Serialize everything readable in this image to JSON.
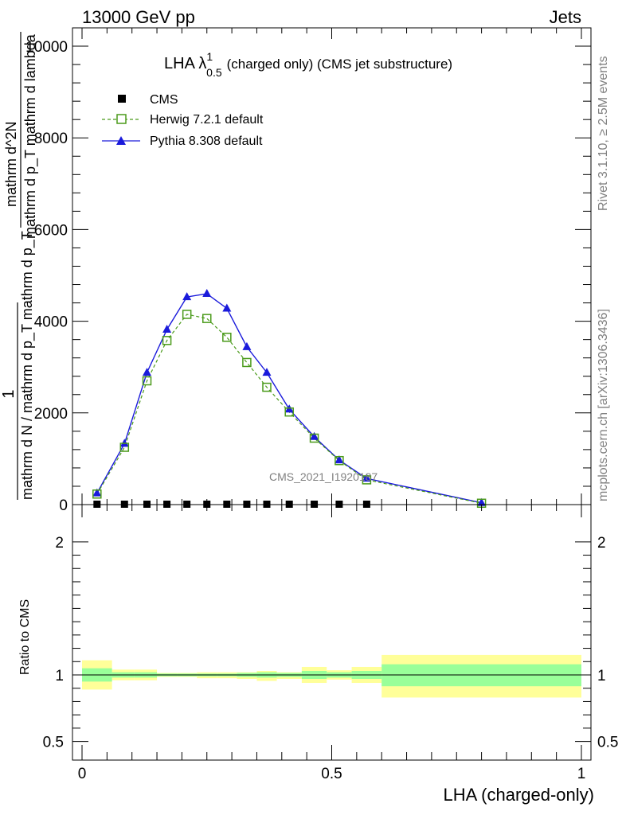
{
  "header": {
    "left": "13000 GeV pp",
    "right": "Jets"
  },
  "side_labels": {
    "rivet": "Rivet 3.1.10, ≥ 2.5M events",
    "mcplots": "mcplots.cern.ch [arXiv:1306.3436]"
  },
  "watermark": "CMS_2021_I1920187",
  "chart_data": [
    {
      "type": "line",
      "title_main": "LHA λ",
      "title_sup": "1",
      "title_sub": "0.5",
      "title_rest": "(charged only) (CMS jet substructure)",
      "ylabel_num": "1",
      "ylabel_den": "mathrm d N / mathrm d p_T mathrm d p_T",
      "ylabel_frac_num": "mathrm d^2N",
      "ylabel_frac_den": "mathrm d p_T mathrm d lambda",
      "xlim": [
        0,
        1
      ],
      "ylim": [
        0,
        10400
      ],
      "yticks": [
        0,
        2000,
        4000,
        6000,
        8000,
        10000
      ],
      "ytick_labels": [
        "0",
        "2000",
        "4000",
        "6000",
        "8000",
        "10000"
      ],
      "legend": [
        {
          "name": "CMS",
          "color": "#000000",
          "marker": "square-filled"
        },
        {
          "name": "Herwig 7.2.1 default",
          "color": "#4a9a1a",
          "marker": "square-open",
          "dash": true
        },
        {
          "name": "Pythia 8.308 default",
          "color": "#1a1adb",
          "marker": "triangle"
        }
      ],
      "series": [
        {
          "name": "CMS",
          "x": [
            0.03,
            0.085,
            0.13,
            0.17,
            0.21,
            0.25,
            0.29,
            0.33,
            0.37,
            0.415,
            0.465,
            0.515,
            0.57
          ],
          "values": [
            0,
            0,
            0,
            0,
            0,
            0,
            0,
            0,
            0,
            0,
            0,
            0,
            0
          ]
        },
        {
          "name": "Herwig 7.2.1 default",
          "x": [
            0.03,
            0.085,
            0.13,
            0.17,
            0.21,
            0.25,
            0.29,
            0.33,
            0.37,
            0.415,
            0.465,
            0.515,
            0.57,
            0.8
          ],
          "values": [
            230,
            1250,
            2700,
            3580,
            4150,
            4060,
            3650,
            3100,
            2560,
            2020,
            1450,
            960,
            540,
            30
          ]
        },
        {
          "name": "Pythia 8.308 default",
          "x": [
            0.03,
            0.085,
            0.13,
            0.17,
            0.21,
            0.25,
            0.29,
            0.33,
            0.37,
            0.415,
            0.465,
            0.515,
            0.57,
            0.8
          ],
          "values": [
            250,
            1330,
            2880,
            3820,
            4530,
            4600,
            4280,
            3440,
            2880,
            2080,
            1480,
            970,
            570,
            40
          ]
        }
      ]
    },
    {
      "type": "area",
      "ylabel": "Ratio to CMS",
      "xlabel": "LHA (charged-only)",
      "xlim": [
        0,
        1
      ],
      "ylim": [
        0.36,
        2.28
      ],
      "xtick_labels": [
        "0",
        "0.5",
        "1"
      ],
      "xticks": [
        0,
        0.5,
        1
      ],
      "yticks": [
        0.5,
        1,
        2
      ],
      "ytick_labels": [
        "0.5",
        "1",
        "2"
      ],
      "reference": 1,
      "bands": [
        {
          "x0": 0.0,
          "x1": 0.06,
          "inner": [
            0.95,
            1.05
          ],
          "outer": [
            0.89,
            1.11
          ]
        },
        {
          "x0": 0.06,
          "x1": 0.105,
          "inner": [
            0.98,
            1.02
          ],
          "outer": [
            0.96,
            1.04
          ]
        },
        {
          "x0": 0.105,
          "x1": 0.15,
          "inner": [
            0.98,
            1.02
          ],
          "outer": [
            0.96,
            1.04
          ]
        },
        {
          "x0": 0.15,
          "x1": 0.19,
          "inner": [
            0.99,
            1.01
          ],
          "outer": [
            0.985,
            1.015
          ]
        },
        {
          "x0": 0.19,
          "x1": 0.23,
          "inner": [
            0.99,
            1.01
          ],
          "outer": [
            0.985,
            1.015
          ]
        },
        {
          "x0": 0.23,
          "x1": 0.27,
          "inner": [
            0.99,
            1.01
          ],
          "outer": [
            0.975,
            1.02
          ]
        },
        {
          "x0": 0.27,
          "x1": 0.31,
          "inner": [
            0.99,
            1.01
          ],
          "outer": [
            0.975,
            1.02
          ]
        },
        {
          "x0": 0.31,
          "x1": 0.35,
          "inner": [
            0.985,
            1.015
          ],
          "outer": [
            0.97,
            1.02
          ]
        },
        {
          "x0": 0.35,
          "x1": 0.39,
          "inner": [
            0.98,
            1.02
          ],
          "outer": [
            0.955,
            1.03
          ]
        },
        {
          "x0": 0.39,
          "x1": 0.44,
          "inner": [
            0.985,
            1.015
          ],
          "outer": [
            0.97,
            1.02
          ]
        },
        {
          "x0": 0.44,
          "x1": 0.49,
          "inner": [
            0.97,
            1.03
          ],
          "outer": [
            0.94,
            1.06
          ]
        },
        {
          "x0": 0.49,
          "x1": 0.54,
          "inner": [
            0.98,
            1.02
          ],
          "outer": [
            0.965,
            1.035
          ]
        },
        {
          "x0": 0.54,
          "x1": 0.6,
          "inner": [
            0.97,
            1.03
          ],
          "outer": [
            0.94,
            1.06
          ]
        },
        {
          "x0": 0.6,
          "x1": 1.0,
          "inner": [
            0.915,
            1.08
          ],
          "outer": [
            0.83,
            1.15
          ]
        }
      ],
      "colors": {
        "inner": "#99ff99",
        "outer": "#ffff99"
      }
    }
  ]
}
